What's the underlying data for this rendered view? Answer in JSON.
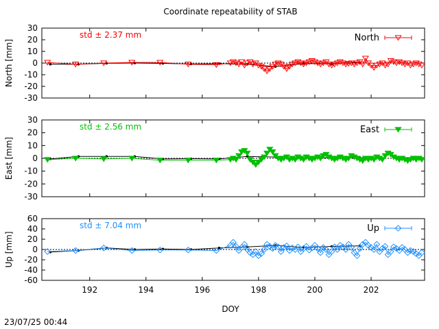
{
  "title": "Coordinate repeatability of STAB",
  "timestamp": "23/07/25 00:44",
  "chart_data": {
    "type": "line",
    "title": "Coordinate repeatability of STAB",
    "xlabel": "DOY",
    "xlim": [
      190.3,
      203.9
    ],
    "xticks": [
      192,
      194,
      196,
      198,
      200,
      202
    ],
    "panels": [
      {
        "key": "north",
        "ylabel": "North [mm]",
        "ylim": [
          -30,
          30
        ],
        "yticks": [
          -30,
          -20,
          -10,
          0,
          10,
          20,
          30
        ],
        "color": "#ff0000",
        "marker": "triangle-down-open",
        "legend": "North",
        "std_label": "std ± 2.37 mm",
        "series_x": [
          190.5,
          191.5,
          192.5,
          193.5,
          194.5,
          195.5,
          196.5,
          197.0,
          197.1,
          197.2,
          197.3,
          197.4,
          197.5,
          197.6,
          197.7,
          197.8,
          197.9,
          198.0,
          198.1,
          198.2,
          198.3,
          198.4,
          198.5,
          198.6,
          198.7,
          198.8,
          198.9,
          199.0,
          199.1,
          199.2,
          199.3,
          199.4,
          199.5,
          199.6,
          199.7,
          199.8,
          199.9,
          200.0,
          200.1,
          200.2,
          200.3,
          200.4,
          200.5,
          200.6,
          200.7,
          200.8,
          200.9,
          201.0,
          201.1,
          201.2,
          201.3,
          201.4,
          201.5,
          201.6,
          201.7,
          201.8,
          201.9,
          202.0,
          202.1,
          202.2,
          202.3,
          202.4,
          202.5,
          202.6,
          202.7,
          202.8,
          202.9,
          203.0,
          203.1,
          203.2,
          203.3,
          203.4,
          203.5,
          203.6,
          203.7,
          203.8
        ],
        "series_y": [
          0.5,
          -1,
          0,
          0.5,
          0.5,
          -1,
          -1.5,
          0,
          1,
          0,
          -1,
          1,
          -2,
          0,
          1,
          -1,
          0,
          -2,
          -3,
          -5,
          -7,
          -5,
          -3,
          -1,
          0,
          -1,
          -3,
          -5,
          -3,
          -1,
          0,
          1,
          0,
          -1,
          0,
          1,
          2,
          1,
          0,
          -1,
          0,
          1,
          -1,
          -2,
          -1,
          0,
          1,
          0,
          -1,
          -0.5,
          0,
          -1,
          0,
          1,
          -1,
          4,
          0,
          -2,
          -4,
          -2,
          -1,
          0,
          -2,
          -1,
          2,
          1,
          0,
          1,
          0,
          -1,
          0,
          -2,
          -1,
          0,
          -1,
          -2
        ],
        "weekly_x": [
          190.6,
          191.6,
          192.6,
          193.6,
          194.6,
          195.6,
          196.6,
          197.6,
          198.6,
          199.6,
          200.6,
          201.6
        ],
        "weekly_y": [
          -1,
          -1,
          -0.2,
          0,
          -0.3,
          -0.8,
          -0.5,
          -1,
          -3,
          -0.5,
          -0.5,
          0.5
        ]
      },
      {
        "key": "east",
        "ylabel": "East [mm]",
        "ylim": [
          -30,
          30
        ],
        "yticks": [
          -30,
          -20,
          -10,
          0,
          10,
          20,
          30
        ],
        "color": "#00c000",
        "marker": "triangle-down-filled",
        "legend": "East",
        "std_label": "std ± 2.56 mm",
        "series_x": [
          190.5,
          191.5,
          192.5,
          193.5,
          194.5,
          195.5,
          196.5,
          197.0,
          197.1,
          197.2,
          197.3,
          197.4,
          197.5,
          197.6,
          197.7,
          197.8,
          197.9,
          198.0,
          198.1,
          198.2,
          198.3,
          198.4,
          198.5,
          198.6,
          198.7,
          198.8,
          198.9,
          199.0,
          199.1,
          199.2,
          199.3,
          199.4,
          199.5,
          199.6,
          199.7,
          199.8,
          199.9,
          200.0,
          200.1,
          200.2,
          200.3,
          200.4,
          200.5,
          200.6,
          200.7,
          200.8,
          200.9,
          201.0,
          201.1,
          201.2,
          201.3,
          201.4,
          201.5,
          201.6,
          201.7,
          201.8,
          201.9,
          202.0,
          202.1,
          202.2,
          202.3,
          202.4,
          202.5,
          202.6,
          202.7,
          202.8,
          202.9,
          203.0,
          203.1,
          203.2,
          203.3,
          203.4,
          203.5,
          203.6,
          203.7,
          203.8
        ],
        "series_y": [
          -1,
          0,
          -0.5,
          0,
          -1.5,
          -1.5,
          -1.5,
          -1,
          0,
          -1,
          2,
          5,
          6,
          4,
          -1,
          -3,
          -5,
          -3,
          -1,
          1,
          4,
          7,
          5,
          2,
          0,
          -1,
          0,
          1,
          -1,
          0,
          -1,
          1,
          0,
          -1,
          1,
          0,
          -1,
          0,
          1,
          0,
          2,
          3,
          1,
          0,
          -1,
          0,
          1,
          0,
          -1,
          0,
          2,
          1,
          0,
          -1,
          -2,
          0,
          -1,
          0,
          -1,
          1,
          0,
          -1,
          2,
          4,
          3,
          1,
          0,
          -1,
          0,
          -1,
          -2,
          -1,
          0,
          -1,
          0,
          -1
        ],
        "weekly_x": [
          190.6,
          191.6,
          192.6,
          193.6,
          194.6,
          195.6,
          196.6,
          197.6,
          198.6,
          199.6,
          200.6,
          201.6
        ],
        "weekly_y": [
          -0.5,
          1.5,
          1.5,
          1.5,
          -0.5,
          -0.3,
          -0.5,
          1.5,
          1.0,
          0,
          0.5,
          0.5
        ]
      },
      {
        "key": "up",
        "ylabel": "Up [mm]",
        "ylim": [
          -60,
          60
        ],
        "yticks": [
          -60,
          -40,
          -20,
          0,
          20,
          40,
          60
        ],
        "color": "#1e90ff",
        "marker": "diamond-open",
        "legend": "Up",
        "std_label": "std ± 7.04 mm",
        "series_x": [
          190.5,
          191.5,
          192.5,
          193.5,
          194.5,
          195.5,
          196.5,
          197.0,
          197.1,
          197.2,
          197.3,
          197.4,
          197.5,
          197.6,
          197.7,
          197.8,
          197.9,
          198.0,
          198.1,
          198.2,
          198.3,
          198.4,
          198.5,
          198.6,
          198.7,
          198.8,
          198.9,
          199.0,
          199.1,
          199.2,
          199.3,
          199.4,
          199.5,
          199.6,
          199.7,
          199.8,
          199.9,
          200.0,
          200.1,
          200.2,
          200.3,
          200.4,
          200.5,
          200.6,
          200.7,
          200.8,
          200.9,
          201.0,
          201.1,
          201.2,
          201.3,
          201.4,
          201.5,
          201.6,
          201.7,
          201.8,
          201.9,
          202.0,
          202.1,
          202.2,
          202.3,
          202.4,
          202.5,
          202.6,
          202.7,
          202.8,
          202.9,
          203.0,
          203.1,
          203.2,
          203.3,
          203.4,
          203.5,
          203.6,
          203.7,
          203.8
        ],
        "series_y": [
          -4,
          -2,
          3,
          -2,
          -1,
          -1,
          -2,
          8,
          14,
          6,
          -2,
          4,
          10,
          0,
          -6,
          -10,
          -4,
          -12,
          -8,
          0,
          10,
          6,
          2,
          8,
          5,
          -4,
          4,
          7,
          -2,
          3,
          0,
          5,
          -4,
          2,
          6,
          -1,
          3,
          8,
          2,
          -6,
          4,
          0,
          -10,
          -4,
          5,
          0,
          8,
          5,
          0,
          10,
          4,
          -6,
          -12,
          2,
          10,
          14,
          8,
          4,
          0,
          10,
          -4,
          2,
          6,
          -10,
          -4,
          5,
          2,
          -2,
          4,
          0,
          -6,
          -2,
          -4,
          -8,
          -12,
          -6
        ],
        "weekly_x": [
          190.6,
          191.6,
          192.6,
          193.6,
          194.6,
          195.6,
          196.6,
          197.6,
          198.6,
          199.6,
          200.6,
          201.6
        ],
        "weekly_y": [
          -5,
          -2,
          3,
          0,
          1,
          0,
          3,
          5,
          8,
          4,
          6,
          7
        ]
      }
    ]
  }
}
